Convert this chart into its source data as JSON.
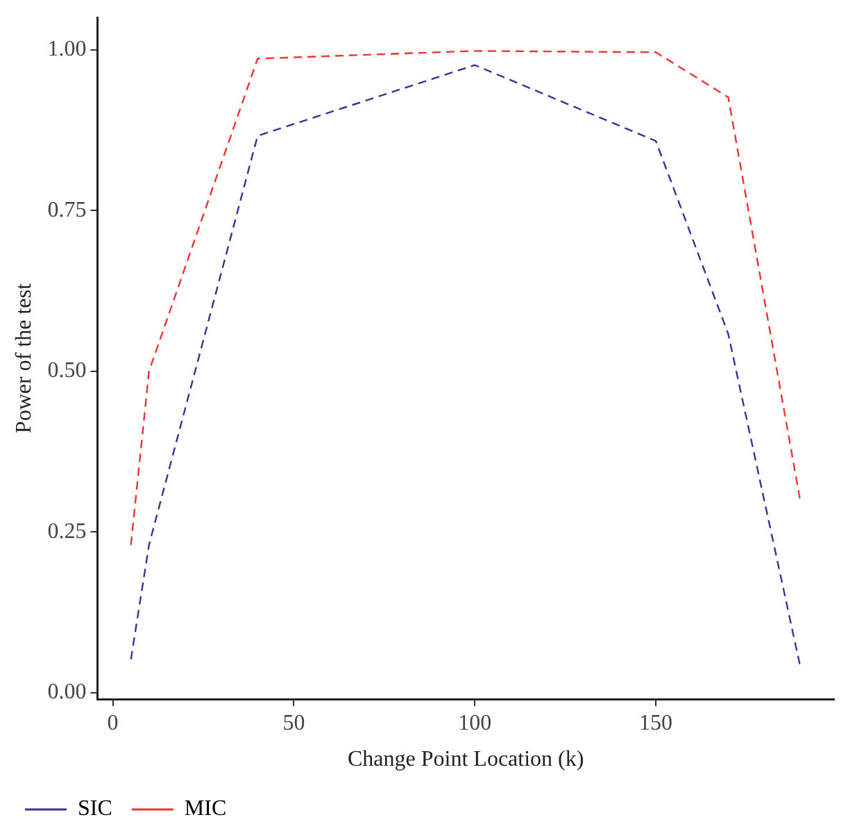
{
  "chart_data": {
    "type": "line",
    "xlabel": "Change Point Location (k)",
    "ylabel": "Power of the test",
    "x": [
      5,
      10,
      40,
      100,
      150,
      170,
      190
    ],
    "series": [
      {
        "name": "SIC",
        "color": "#3b2f9a",
        "values": [
          0.052,
          0.23,
          0.866,
          0.976,
          0.858,
          0.558,
          0.038
        ]
      },
      {
        "name": "MIC",
        "color": "#ee3333",
        "values": [
          0.23,
          0.5,
          0.986,
          0.998,
          0.996,
          0.926,
          0.295
        ]
      }
    ],
    "xlim": [
      -4.25,
      199.25
    ],
    "xticks": [
      0,
      50,
      100,
      150
    ],
    "ylim": [
      -0.01,
      1.05
    ],
    "yticks": [
      {
        "value": 0,
        "label": "0.00"
      },
      {
        "value": 0.25,
        "label": "0.25"
      },
      {
        "value": 0.5,
        "label": "0.50"
      },
      {
        "value": 0.75,
        "label": "0.75"
      },
      {
        "value": 1,
        "label": "1.00"
      }
    ],
    "grid": false,
    "legend": "bottom left",
    "marker": "none",
    "line_style": "dashed"
  }
}
